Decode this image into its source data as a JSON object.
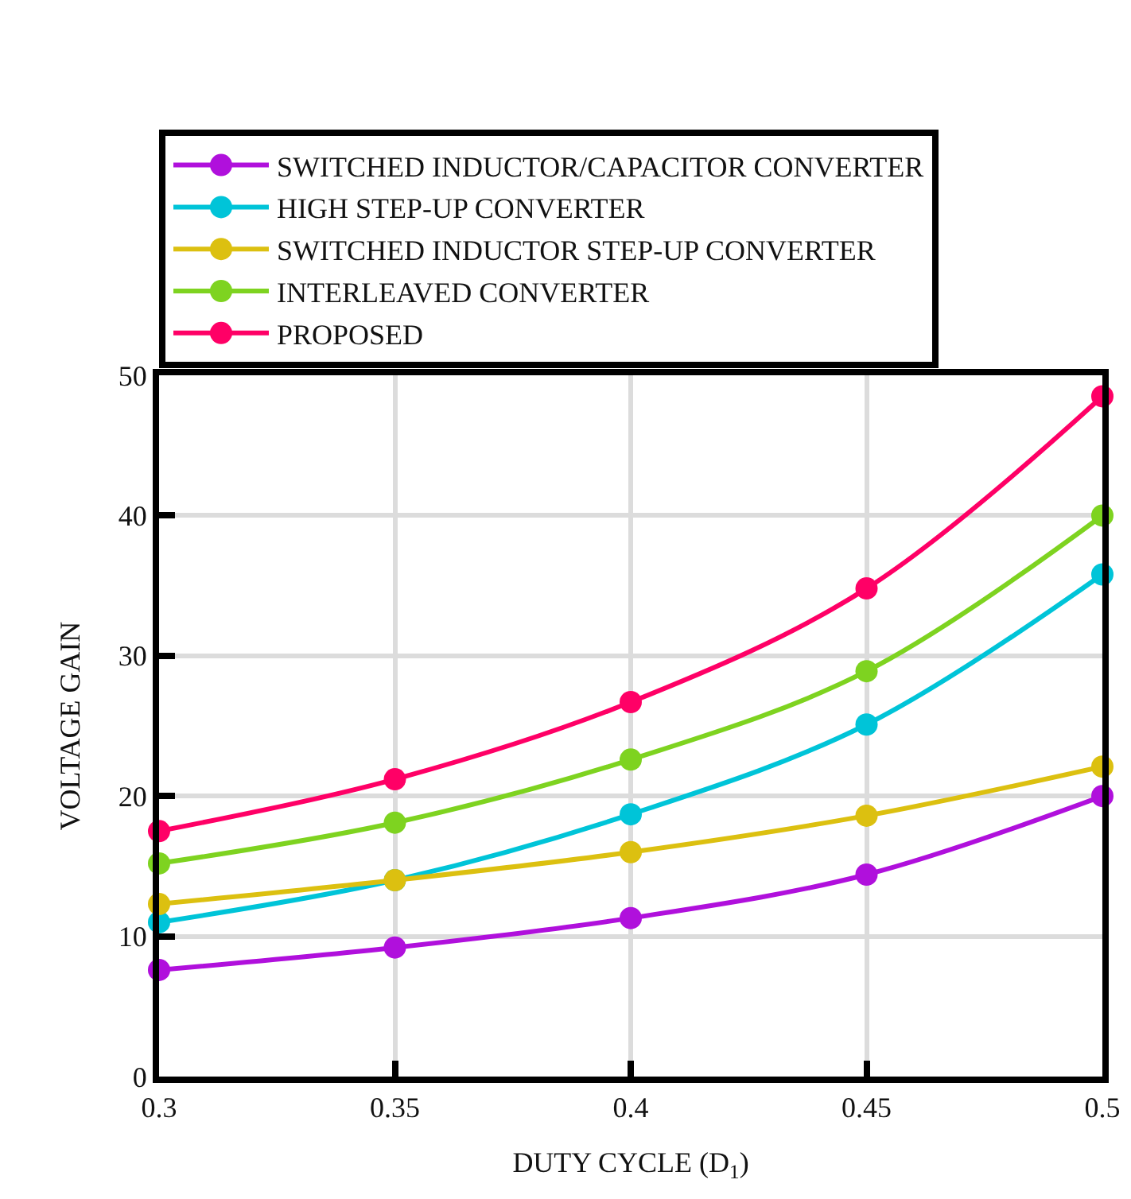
{
  "chart_data": {
    "type": "line",
    "xlabel": "DUTY CYCLE (D$_{1}$)",
    "ylabel": "VOLTAGE GAIN",
    "x": [
      0.3,
      0.35,
      0.4,
      0.45,
      0.5
    ],
    "series": [
      {
        "name": "SWITCHED INDUCTOR/CAPACITOR CONVERTER",
        "color": "#b010dc",
        "values": [
          7.6,
          9.2,
          11.3,
          14.4,
          20.0
        ]
      },
      {
        "name": "HIGH STEP-UP CONVERTER",
        "color": "#00c4d8",
        "values": [
          11.0,
          14.0,
          18.7,
          25.1,
          35.8
        ]
      },
      {
        "name": "SWITCHED INDUCTOR STEP-UP CONVERTER",
        "color": "#dcc010",
        "values": [
          12.3,
          14.0,
          16.0,
          18.6,
          22.1
        ]
      },
      {
        "name": "INTERLEAVED CONVERTER",
        "color": "#7ed320",
        "values": [
          15.2,
          18.1,
          22.6,
          28.9,
          40.0
        ]
      },
      {
        "name": "PROPOSED",
        "color": "#ff0066",
        "values": [
          17.5,
          21.2,
          26.7,
          34.8,
          48.5
        ]
      }
    ],
    "xlim": [
      0.3,
      0.5
    ],
    "xticks": [
      0.3,
      0.35,
      0.4,
      0.45,
      0.5
    ],
    "ylim": [
      0,
      50
    ],
    "yticks": [
      0,
      10,
      20,
      30,
      40,
      50
    ],
    "grid": true,
    "legend": "top",
    "marker": "circle",
    "line_style": "solid"
  }
}
